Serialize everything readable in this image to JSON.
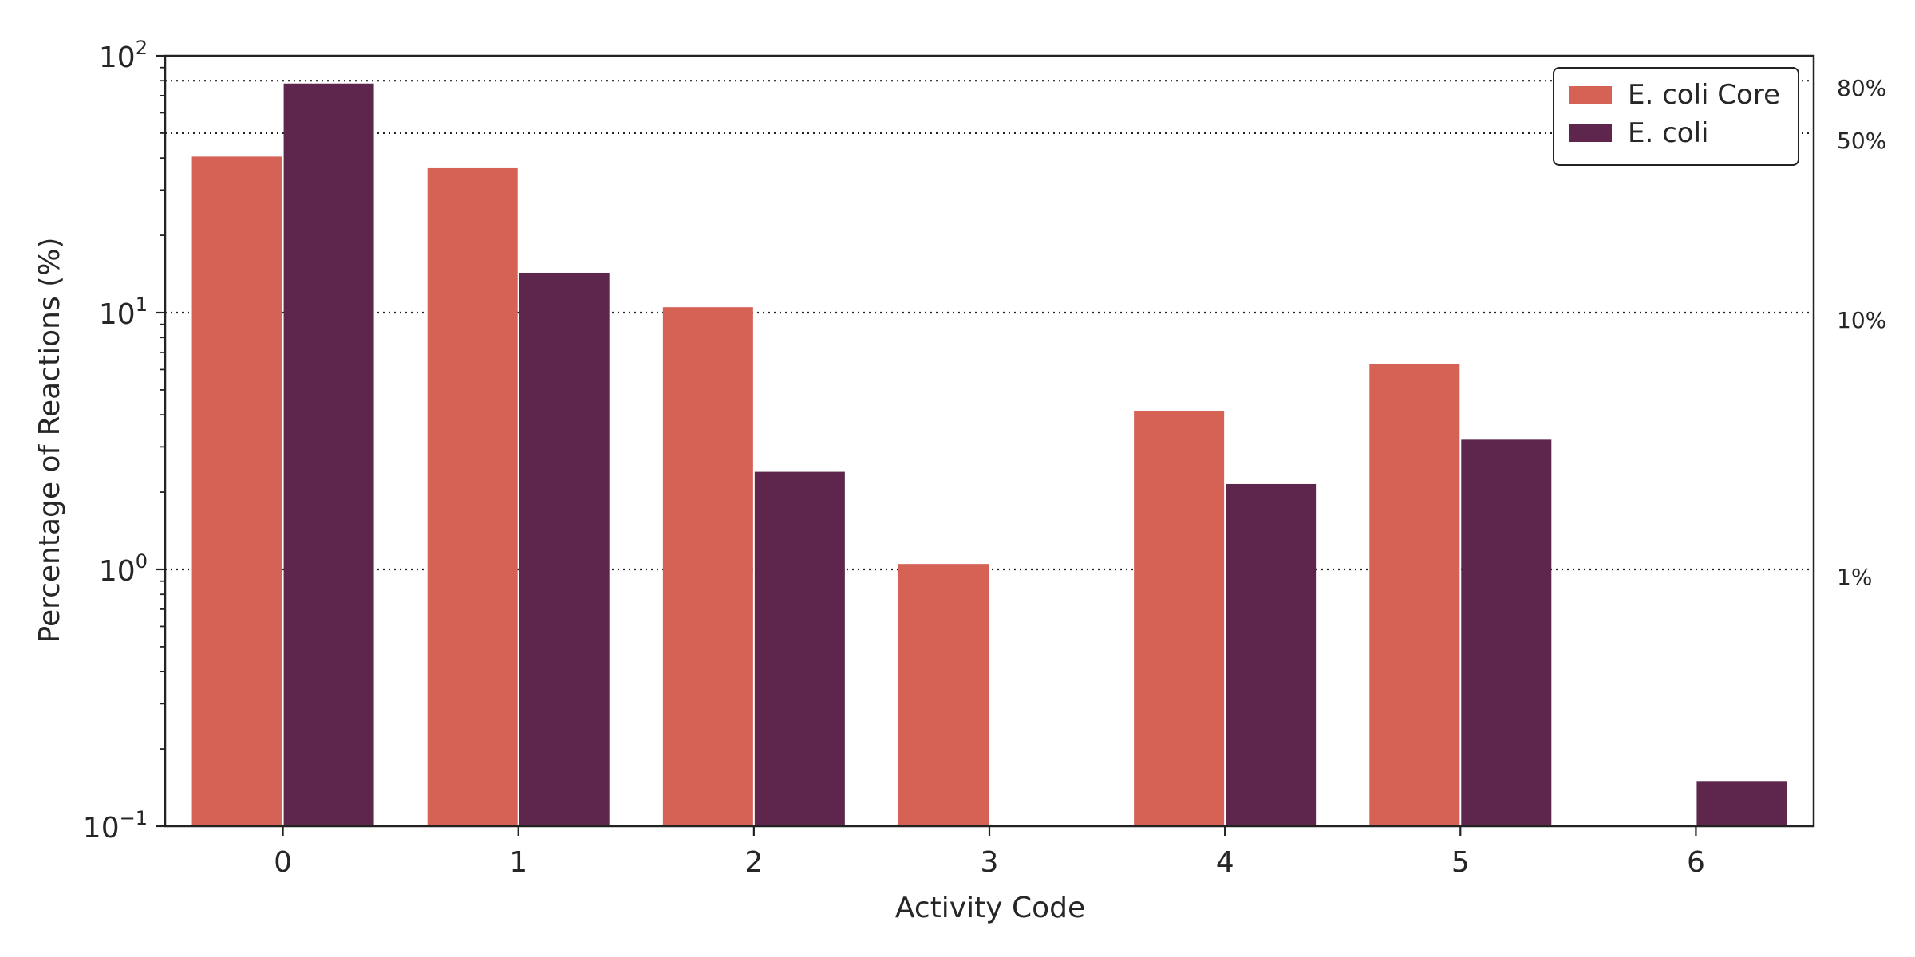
{
  "chart_data": {
    "type": "bar",
    "title": "",
    "xlabel": "Activity Code",
    "ylabel": "Percentage of Reactions (%)",
    "y_scale": "log",
    "ylim": [
      0.1,
      100
    ],
    "y_ticks": [
      {
        "value": 0.1,
        "base": "10",
        "exp": "−1"
      },
      {
        "value": 1,
        "base": "10",
        "exp": "0"
      },
      {
        "value": 10,
        "base": "10",
        "exp": "1"
      },
      {
        "value": 100,
        "base": "10",
        "exp": "2"
      }
    ],
    "categories": [
      "0",
      "1",
      "2",
      "3",
      "4",
      "5",
      "6"
    ],
    "series": [
      {
        "name": "E. coli Core",
        "color": "#d66155",
        "values": [
          40.5,
          36.5,
          10.5,
          1.05,
          4.15,
          6.3,
          null
        ]
      },
      {
        "name": "E. coli",
        "color": "#5e264d",
        "values": [
          78,
          14.3,
          2.4,
          null,
          2.15,
          3.2,
          0.15
        ]
      }
    ],
    "reference_lines": [
      {
        "value": 80,
        "label": "80%"
      },
      {
        "value": 50,
        "label": "50%"
      },
      {
        "value": 10,
        "label": "10%"
      },
      {
        "value": 1,
        "label": "1%"
      }
    ],
    "grid": false,
    "legend": {
      "position": "top-right"
    }
  }
}
